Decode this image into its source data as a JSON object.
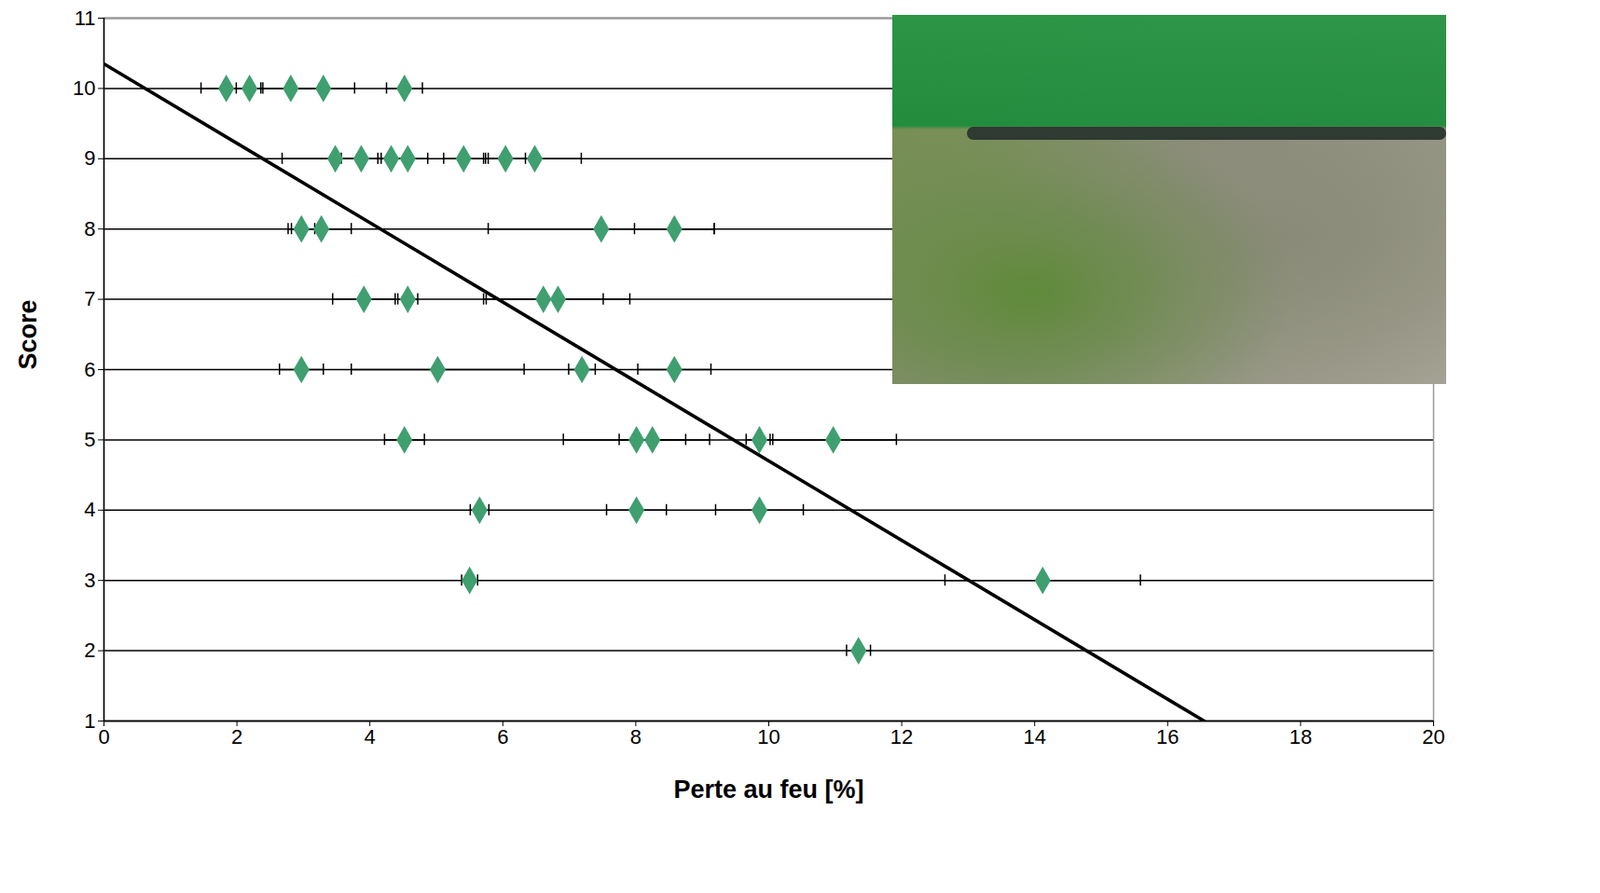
{
  "chart_data": {
    "type": "scatter",
    "x_label": "Perte au feu [%]",
    "y_label": "Score",
    "xlim": [
      0,
      20
    ],
    "ylim": [
      1,
      11
    ],
    "xticks": [
      0,
      2,
      4,
      6,
      8,
      10,
      12,
      14,
      16,
      18,
      20
    ],
    "yticks": [
      1,
      2,
      3,
      4,
      5,
      6,
      7,
      8,
      9,
      10,
      11
    ],
    "grid": true,
    "series": [
      {
        "type": "scatter",
        "marker": "diamond",
        "color": "#3f9f6f",
        "x": [
          1.84,
          2.19,
          2.81,
          3.3,
          4.52,
          3.48,
          3.87,
          4.32,
          4.57,
          5.41,
          6.04,
          6.48,
          2.97,
          3.27,
          7.48,
          8.58,
          3.91,
          4.57,
          6.61,
          6.83,
          2.97,
          5.02,
          7.19,
          8.58,
          4.52,
          8.01,
          8.25,
          9.86,
          10.97,
          5.65,
          8.01,
          9.86,
          5.5,
          14.12,
          11.35
        ],
        "y": [
          10,
          10,
          10,
          10,
          10,
          9,
          9,
          9,
          9,
          9,
          9,
          9,
          8,
          8,
          8,
          8,
          7,
          7,
          7,
          7,
          6,
          6,
          6,
          6,
          5,
          5,
          5,
          5,
          5,
          4,
          4,
          4,
          3,
          3,
          2
        ],
        "x_error": [
          0.38,
          0.2,
          0.45,
          0.47,
          0.27,
          0.8,
          0.3,
          0.2,
          0.3,
          0.3,
          0.3,
          0.7,
          0.2,
          0.45,
          1.7,
          0.6,
          0.47,
          0.15,
          0.9,
          1.08,
          0.33,
          1.3,
          0.2,
          0.55,
          0.3,
          1.1,
          0.5,
          0.2,
          0.95,
          0.14,
          0.45,
          0.66,
          0.12,
          1.47,
          0.18
        ]
      },
      {
        "type": "line",
        "line_style": "solid",
        "color": "#000000",
        "x": [
          0,
          16.55
        ],
        "y": [
          10.35,
          1
        ]
      }
    ]
  }
}
